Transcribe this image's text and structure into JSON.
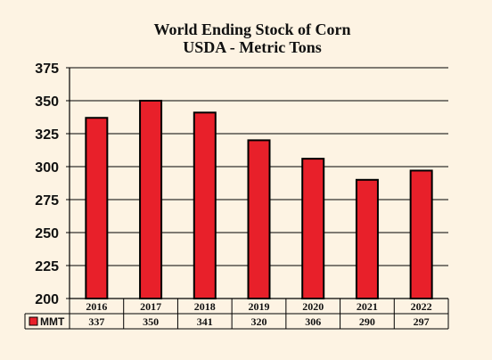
{
  "chart_data": {
    "type": "bar",
    "title": "World Ending Stock of Corn",
    "subtitle": "USDA - Metric Tons",
    "categories": [
      "2016",
      "2017",
      "2018",
      "2019",
      "2020",
      "2021",
      "2022"
    ],
    "series": [
      {
        "name": "MMT",
        "values": [
          337,
          350,
          341,
          320,
          306,
          290,
          297
        ],
        "color": "#e8202a"
      }
    ],
    "value_labels": [
      "337",
      "350",
      "341",
      "320",
      "306",
      "290",
      "297"
    ],
    "ylim": [
      200,
      375
    ],
    "yticks": [
      "200",
      "225",
      "250",
      "275",
      "300",
      "325",
      "350",
      "375"
    ],
    "grid": true,
    "legend": "data-table-row"
  },
  "colors": {
    "background": "#fdf3e3",
    "bar": "#e8202a",
    "bar_outline": "#000000",
    "grid": "#000000"
  }
}
